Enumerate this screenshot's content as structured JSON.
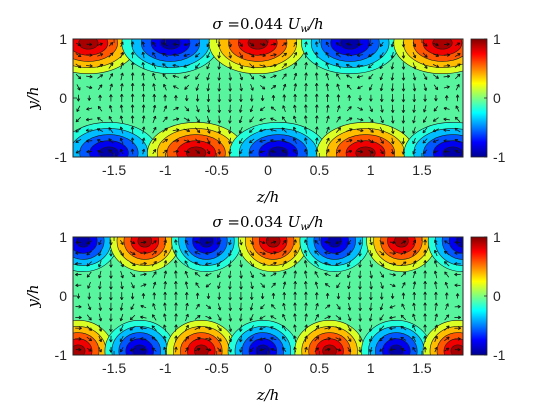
{
  "panels": [
    {
      "title_parts": {
        "sigma": "σ",
        "value": " =0.044 ",
        "unit_main": "U",
        "unit_sub": "w",
        "unit_tail": "/h"
      },
      "xlabel": "z/h",
      "ylabel": "y/h",
      "xticks": [
        "-1.5",
        "-1",
        "-0.5",
        "0",
        "0.5",
        "1",
        "1.5"
      ],
      "yticks": [
        "-1",
        "0",
        "1"
      ]
    },
    {
      "title_parts": {
        "sigma": "σ",
        "value": " =0.034 ",
        "unit_main": "U",
        "unit_sub": "w",
        "unit_tail": "/h"
      },
      "xlabel": "z/h",
      "ylabel": "y/h",
      "xticks": [
        "-1.5",
        "-1",
        "-0.5",
        "0",
        "0.5",
        "1",
        "1.5"
      ],
      "yticks": [
        "-1",
        "0",
        "1"
      ]
    }
  ],
  "colorbar": {
    "ticks": [
      "1",
      "0",
      "-1"
    ]
  },
  "chart_data": [
    {
      "type": "heatmap",
      "title": "σ =0.044 Uw/h",
      "xlabel": "z/h",
      "ylabel": "y/h",
      "xlim": [
        -1.9,
        1.9
      ],
      "ylim": [
        -1,
        1
      ],
      "xticks": [
        -1.5,
        -1,
        -0.5,
        0,
        0.5,
        1,
        1.5
      ],
      "yticks": [
        -1,
        0,
        1
      ],
      "colormap": "jet",
      "clim": [
        -1,
        1
      ],
      "colorbar_ticks": [
        -1,
        0,
        1
      ],
      "top_wall_extrema": [
        {
          "z": -1.75,
          "value": 1
        },
        {
          "z": -0.95,
          "value": -1
        },
        {
          "z": -0.1,
          "value": 1
        },
        {
          "z": 0.8,
          "value": -1
        },
        {
          "z": 1.7,
          "value": 1
        }
      ],
      "bottom_wall_extrema": [
        {
          "z": -1.55,
          "value": -1
        },
        {
          "z": -0.7,
          "value": 1
        },
        {
          "z": 0.1,
          "value": -1
        },
        {
          "z": 0.95,
          "value": 1
        },
        {
          "z": 1.8,
          "value": -1
        }
      ],
      "overlay": "velocity vector arrows (quiver) and contour lines"
    },
    {
      "type": "heatmap",
      "title": "σ =0.034 Uw/h",
      "xlabel": "z/h",
      "ylabel": "y/h",
      "xlim": [
        -1.9,
        1.9
      ],
      "ylim": [
        -1,
        1
      ],
      "xticks": [
        -1.5,
        -1,
        -0.5,
        0,
        0.5,
        1,
        1.5
      ],
      "yticks": [
        -1,
        0,
        1
      ],
      "colormap": "jet",
      "clim": [
        -1,
        1
      ],
      "colorbar_ticks": [
        -1,
        0,
        1
      ],
      "top_wall_extrema": [
        {
          "z": -1.8,
          "value": -1
        },
        {
          "z": -1.2,
          "value": 1
        },
        {
          "z": -0.6,
          "value": -1
        },
        {
          "z": 0.05,
          "value": 1
        },
        {
          "z": 0.65,
          "value": -1
        },
        {
          "z": 1.3,
          "value": 1
        },
        {
          "z": 1.9,
          "value": -1
        }
      ],
      "bottom_wall_extrema": [
        {
          "z": -1.85,
          "value": 1
        },
        {
          "z": -1.25,
          "value": -1
        },
        {
          "z": -0.65,
          "value": 1
        },
        {
          "z": -0.05,
          "value": -1
        },
        {
          "z": 0.6,
          "value": 1
        },
        {
          "z": 1.25,
          "value": -1
        },
        {
          "z": 1.85,
          "value": 1
        }
      ],
      "overlay": "velocity vector arrows (quiver) and contour lines"
    }
  ]
}
